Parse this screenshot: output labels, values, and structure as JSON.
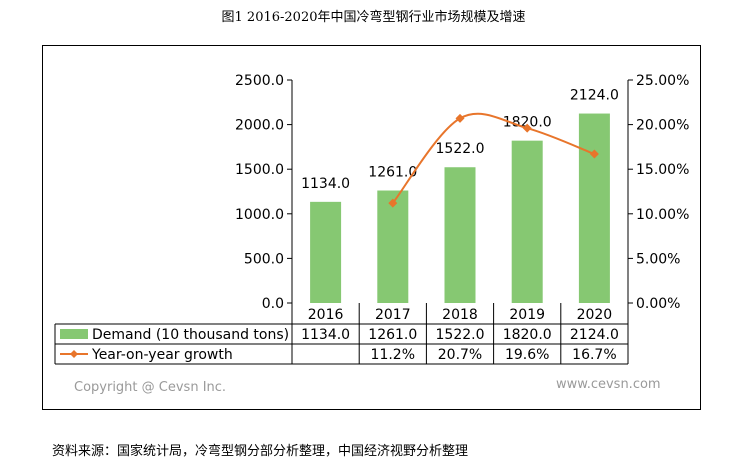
{
  "title": "图1 2016-2020年中国冷弯型钢行业市场规模及增速",
  "source_note": "资料来源：国家统计局，冷弯型钢分部分析整理，中国经济视野分析整理",
  "watermark_left": "Copyright @ Cevsn Inc.",
  "watermark_right": "www.cevsn.com",
  "chart_data": {
    "type": "bar",
    "categories": [
      "2016",
      "2017",
      "2018",
      "2019",
      "2020"
    ],
    "series": [
      {
        "name": "Demand (10 thousand tons)",
        "type": "bar",
        "axis": "left",
        "values": [
          1134.0,
          1261.0,
          1522.0,
          1820.0,
          2124.0
        ],
        "labels": [
          "1134.0",
          "1261.0",
          "1522.0",
          "1820.0",
          "2124.0"
        ],
        "color": "#86c872"
      },
      {
        "name": "Year-on-year growth",
        "type": "line",
        "axis": "right",
        "values": [
          null,
          11.2,
          20.7,
          19.6,
          16.7
        ],
        "labels": [
          "",
          "11.2%",
          "20.7%",
          "19.6%",
          "16.7%"
        ],
        "color": "#e8752b"
      }
    ],
    "y_left": {
      "range": [
        0,
        2500
      ],
      "ticks": [
        0,
        500,
        1000,
        1500,
        2000,
        2500
      ],
      "tick_labels": [
        "0.0",
        "500.0",
        "1000.0",
        "1500.0",
        "2000.0",
        "2500.0"
      ]
    },
    "y_right": {
      "range": [
        0,
        25
      ],
      "ticks": [
        0,
        5,
        10,
        15,
        20,
        25
      ],
      "tick_labels": [
        "0.00%",
        "5.00%",
        "10.00%",
        "15.00%",
        "20.00%",
        "25.00%"
      ]
    },
    "data_table": true,
    "grid": false
  }
}
